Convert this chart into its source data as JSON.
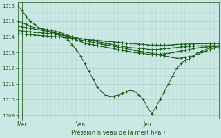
{
  "bg_color": "#cce8e4",
  "grid_color": "#aacfcb",
  "line_color": "#1a5c1a",
  "marker": "+",
  "title": "Pression niveau de la mer( hPa )",
  "xlabel_days": [
    "Mer",
    "Ven",
    "Jeu"
  ],
  "xlabel_positions_ratio": [
    0.04,
    0.33,
    0.65
  ],
  "ylim": [
    1008.8,
    1016.2
  ],
  "yticks": [
    1009,
    1010,
    1011,
    1012,
    1013,
    1014,
    1015,
    1016
  ],
  "n_points": 49,
  "series": [
    [
      1016.0,
      1015.7,
      1015.3,
      1015.0,
      1014.8,
      1014.6,
      1014.5,
      1014.4,
      1014.3,
      1014.2,
      1014.1,
      1014.0,
      1013.8,
      1013.5,
      1013.2,
      1012.8,
      1012.3,
      1011.8,
      1011.3,
      1010.8,
      1010.5,
      1010.3,
      1010.2,
      1010.2,
      1010.3,
      1010.4,
      1010.5,
      1010.6,
      1010.5,
      1010.3,
      1010.0,
      1009.5,
      1009.1,
      1009.5,
      1010.0,
      1010.5,
      1011.0,
      1011.5,
      1012.0,
      1012.3,
      1012.5,
      1012.6,
      1012.8,
      1013.0,
      1013.1,
      1013.2,
      1013.3,
      1013.3,
      1013.3
    ],
    [
      1015.0,
      1014.9,
      1014.8,
      1014.7,
      1014.6,
      1014.55,
      1014.5,
      1014.45,
      1014.4,
      1014.35,
      1014.3,
      1014.2,
      1014.1,
      1014.0,
      1013.9,
      1013.8,
      1013.75,
      1013.7,
      1013.65,
      1013.6,
      1013.55,
      1013.5,
      1013.45,
      1013.4,
      1013.35,
      1013.3,
      1013.25,
      1013.2,
      1013.15,
      1013.1,
      1013.05,
      1013.0,
      1012.95,
      1012.9,
      1012.85,
      1012.8,
      1012.75,
      1012.7,
      1012.65,
      1012.65,
      1012.7,
      1012.75,
      1012.8,
      1012.9,
      1013.0,
      1013.1,
      1013.2,
      1013.3,
      1013.4
    ],
    [
      1014.7,
      1014.65,
      1014.6,
      1014.55,
      1014.5,
      1014.45,
      1014.4,
      1014.35,
      1014.3,
      1014.25,
      1014.2,
      1014.1,
      1014.0,
      1013.9,
      1013.8,
      1013.7,
      1013.6,
      1013.55,
      1013.5,
      1013.45,
      1013.4,
      1013.35,
      1013.3,
      1013.25,
      1013.2,
      1013.15,
      1013.1,
      1013.05,
      1013.0,
      1012.98,
      1012.95,
      1012.9,
      1012.88,
      1012.88,
      1012.9,
      1012.92,
      1012.95,
      1013.0,
      1013.05,
      1013.1,
      1013.15,
      1013.2,
      1013.25,
      1013.3,
      1013.35,
      1013.37,
      1013.38,
      1013.39,
      1013.4
    ],
    [
      1014.4,
      1014.37,
      1014.35,
      1014.32,
      1014.3,
      1014.27,
      1014.25,
      1014.22,
      1014.2,
      1014.17,
      1014.15,
      1014.1,
      1014.05,
      1014.0,
      1013.95,
      1013.9,
      1013.85,
      1013.8,
      1013.75,
      1013.7,
      1013.65,
      1013.6,
      1013.55,
      1013.5,
      1013.45,
      1013.4,
      1013.35,
      1013.32,
      1013.3,
      1013.28,
      1013.25,
      1013.22,
      1013.2,
      1013.2,
      1013.22,
      1013.25,
      1013.28,
      1013.3,
      1013.33,
      1013.36,
      1013.38,
      1013.4,
      1013.42,
      1013.43,
      1013.44,
      1013.44,
      1013.44,
      1013.44,
      1013.44
    ],
    [
      1014.2,
      1014.18,
      1014.16,
      1014.14,
      1014.12,
      1014.1,
      1014.08,
      1014.06,
      1014.04,
      1014.02,
      1014.0,
      1013.97,
      1013.95,
      1013.92,
      1013.9,
      1013.87,
      1013.85,
      1013.82,
      1013.8,
      1013.77,
      1013.75,
      1013.72,
      1013.7,
      1013.67,
      1013.65,
      1013.62,
      1013.6,
      1013.58,
      1013.56,
      1013.54,
      1013.52,
      1013.5,
      1013.48,
      1013.47,
      1013.47,
      1013.47,
      1013.48,
      1013.5,
      1013.52,
      1013.53,
      1013.54,
      1013.55,
      1013.55,
      1013.56,
      1013.57,
      1013.57,
      1013.57,
      1013.57,
      1013.57
    ]
  ]
}
